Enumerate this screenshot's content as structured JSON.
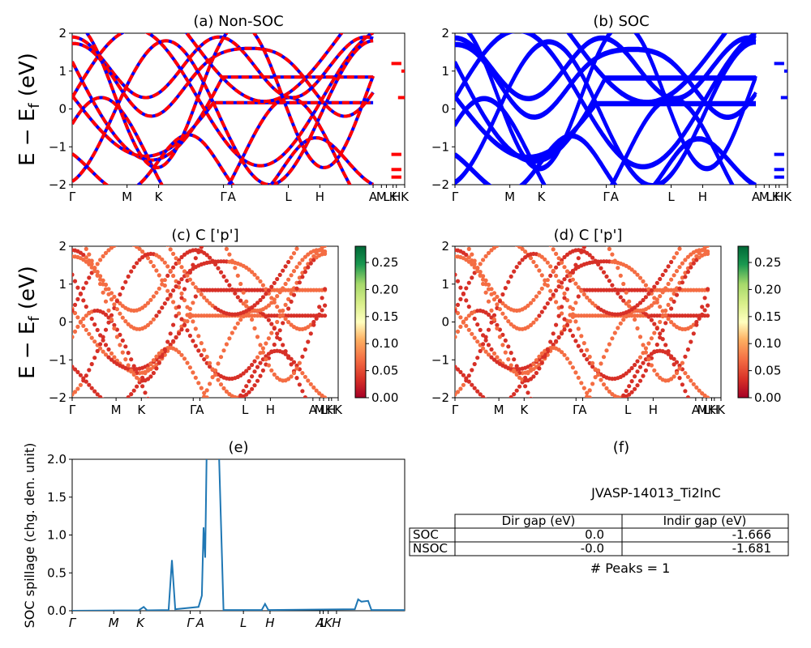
{
  "panels": {
    "a": {
      "title": "(a) Non-SOC"
    },
    "b": {
      "title": "(b) SOC"
    },
    "c": {
      "title": "(c)  C ['p']"
    },
    "d": {
      "title": "(d) C ['p']"
    },
    "e": {
      "title": "(e)"
    },
    "f": {
      "title": "(f)"
    }
  },
  "band_axes": {
    "ylabel": "E − E_f (eV)",
    "ylim": [
      -2,
      2
    ],
    "yticks": [
      "2",
      "1",
      "0",
      "−1",
      "−2"
    ]
  },
  "kpath_labels_band": [
    "Γ",
    "M",
    "K",
    "Γ",
    "A",
    "L",
    "H",
    "A",
    "M",
    "L",
    "K",
    "H",
    "K"
  ],
  "colorbar": {
    "ticks": [
      "0.25",
      "0.20",
      "0.15",
      "0.10",
      "0.05",
      "0.00"
    ],
    "range": [
      0.0,
      0.28
    ],
    "colormap": "RdYlGn"
  },
  "spillage_axes": {
    "ylabel": "SOC spillage (chg. den. unit)",
    "yticks": [
      "2.0",
      "1.5",
      "1.0",
      "0.5",
      "0.0"
    ],
    "ylim": [
      0,
      2
    ],
    "xticks": [
      "Γ",
      "M",
      "K",
      "Γ",
      "A",
      "L",
      "H",
      "A",
      "L",
      "K",
      "H"
    ]
  },
  "table": {
    "material": "JVASP-14013_Ti2InC",
    "headers": [
      "",
      "Dir gap (eV)",
      "Indir gap (eV)"
    ],
    "rows": [
      {
        "label": "SOC",
        "dir": "0.0",
        "indir": "-1.666"
      },
      {
        "label": "NSOC",
        "dir": "-0.0",
        "indir": "-1.681"
      }
    ],
    "peaks": "# Peaks = 1"
  },
  "colors": {
    "nonsoc_red": "#ff0000",
    "nonsoc_blue": "#0000ff",
    "soc_blue": "#0000ff",
    "spillage_line": "#1f77b4"
  },
  "chart_data": [
    {
      "type": "line",
      "title": "(a) Non-SOC",
      "ylabel": "E − E_f (eV)",
      "ylim": [
        -2,
        2
      ],
      "x_tick_labels": [
        "Γ",
        "M",
        "K",
        "Γ",
        "A",
        "L",
        "H",
        "A",
        "M",
        "L",
        "K",
        "H",
        "K"
      ],
      "series_style": "red dashed over blue",
      "note": "electronic band structure along high-symmetry k-path"
    },
    {
      "type": "line",
      "title": "(b) SOC",
      "ylabel": "",
      "ylim": [
        -2,
        2
      ],
      "x_tick_labels": [
        "Γ",
        "M",
        "K",
        "Γ",
        "A",
        "L",
        "H",
        "A",
        "M",
        "L",
        "K",
        "H",
        "K"
      ]
    },
    {
      "type": "scatter",
      "title": "(c)  C ['p']",
      "ylim": [
        -2,
        2
      ],
      "color_range": [
        0.0,
        0.28
      ]
    },
    {
      "type": "scatter",
      "title": "(d) C ['p']",
      "ylim": [
        -2,
        2
      ],
      "color_range": [
        0.0,
        0.28
      ]
    },
    {
      "type": "line",
      "title": "(e)",
      "ylabel": "SOC spillage (chg. den. unit)",
      "ylim": [
        0,
        2
      ],
      "x_tick_labels": [
        "Γ",
        "M",
        "K",
        "Γ",
        "A",
        "L",
        "H",
        "A",
        "L",
        "K",
        "H"
      ],
      "peaks": [
        {
          "x": 0.3,
          "y": 0.67
        },
        {
          "x": 0.395,
          "y": 1.1
        },
        {
          "x": 0.42,
          "y": 2.0
        },
        {
          "x": 0.58,
          "y": 0.09
        },
        {
          "x": 0.86,
          "y": 0.15
        }
      ]
    },
    {
      "type": "table",
      "title": "(f)",
      "columns": [
        "",
        "Dir gap (eV)",
        "Indir gap (eV)"
      ],
      "rows": [
        [
          "SOC",
          "0.0",
          "-1.666"
        ],
        [
          "NSOC",
          "-0.0",
          "-1.681"
        ]
      ]
    }
  ]
}
